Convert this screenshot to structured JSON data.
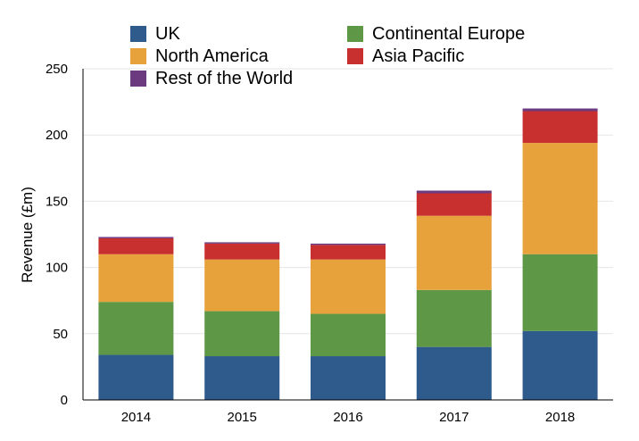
{
  "chart_data": {
    "type": "bar",
    "stacked": true,
    "categories": [
      "2014",
      "2015",
      "2016",
      "2017",
      "2018"
    ],
    "series": [
      {
        "name": "UK",
        "color": "#2e5a8c",
        "values": [
          34,
          33,
          33,
          40,
          52
        ]
      },
      {
        "name": "Continental Europe",
        "color": "#5e9846",
        "values": [
          40,
          34,
          32,
          43,
          58
        ]
      },
      {
        "name": "North America",
        "color": "#e8a23b",
        "values": [
          36,
          39,
          41,
          56,
          84
        ]
      },
      {
        "name": "Asia Pacific",
        "color": "#c8302f",
        "values": [
          12,
          12,
          11,
          17,
          24
        ]
      },
      {
        "name": "Rest of the World",
        "color": "#6b3a7f",
        "values": [
          1,
          1,
          1,
          2,
          2
        ]
      }
    ],
    "ylabel": "Revenue (£m)",
    "ylim": [
      0,
      250
    ],
    "yticks": [
      0,
      50,
      100,
      150,
      200,
      250
    ],
    "grid": true,
    "legend_position": "top"
  }
}
